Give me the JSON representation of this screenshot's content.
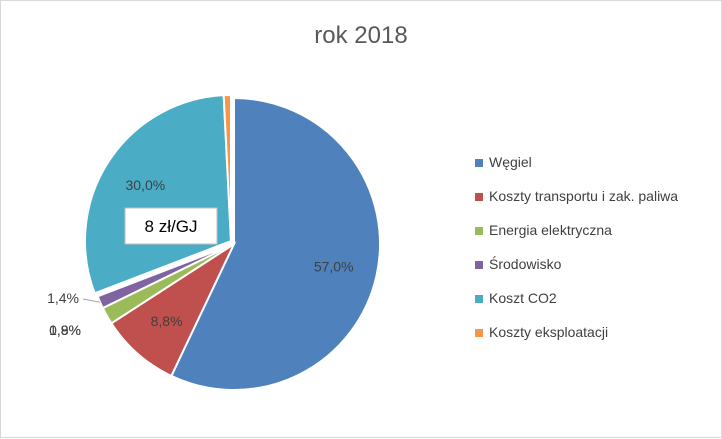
{
  "chart_data": {
    "type": "pie",
    "title": "rok 2018",
    "categories": [
      "Węgiel",
      "Koszty transportu i zak. paliwa",
      "Energia elektryczna",
      "Środowisko",
      "Koszt CO2",
      "Koszty eksploatacji"
    ],
    "values": [
      57.0,
      8.8,
      1.9,
      1.4,
      30.0,
      0.8
    ],
    "data_labels": [
      "57,0%",
      "8,8%",
      "1,9%",
      "1,4%",
      "30,0%",
      "0,8%"
    ],
    "colors": [
      "#4f81bd",
      "#c0504d",
      "#9bbb59",
      "#8064a2",
      "#4bacc6",
      "#f79646"
    ],
    "exploded_slices": [
      "Koszt CO2",
      "Koszty eksploatacji"
    ],
    "legend_position": "right",
    "annotation": "8 zł/GJ"
  }
}
